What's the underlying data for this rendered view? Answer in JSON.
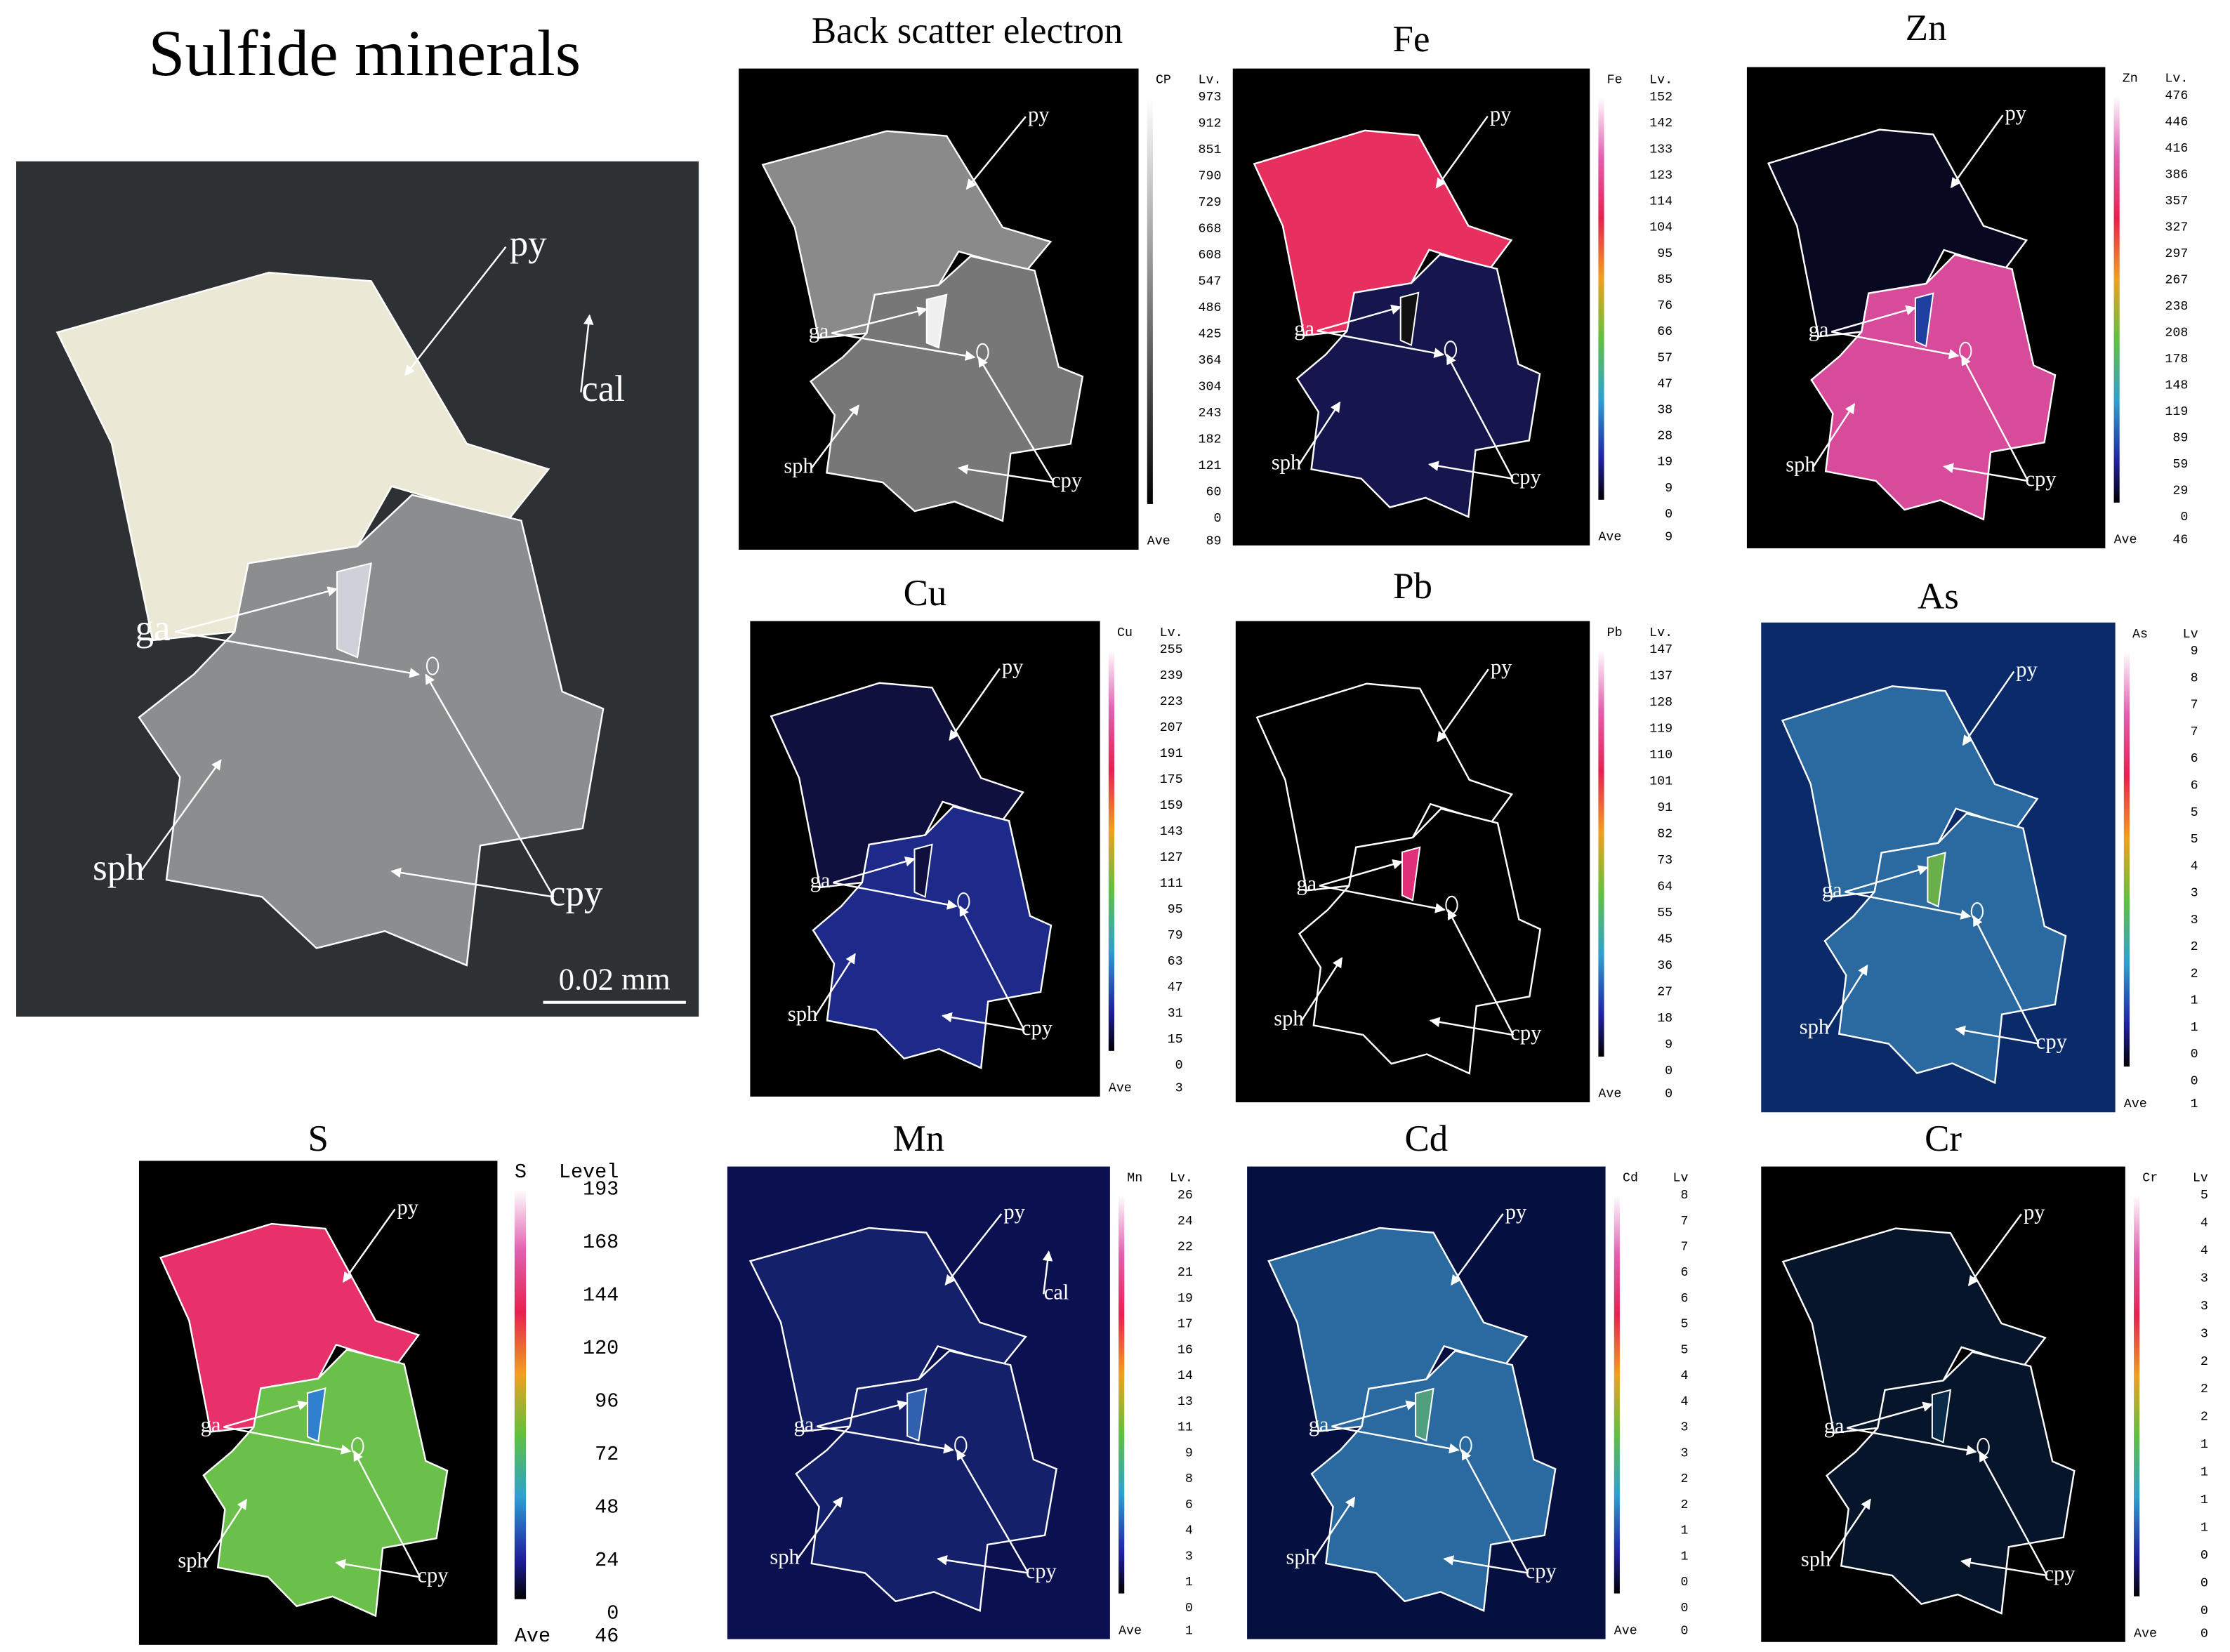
{
  "title": "Sulfide minerals",
  "micrograph": {
    "labels": [
      "py",
      "ga",
      "sph",
      "cpy",
      "cal"
    ],
    "scale_bar": "0.02 mm"
  },
  "maps": [
    {
      "title": "Back scatter electron",
      "element": "CP",
      "level_header": "Lv.",
      "levels": [
        973,
        912,
        851,
        790,
        729,
        668,
        608,
        547,
        486,
        425,
        364,
        304,
        243,
        182,
        121,
        60,
        0
      ],
      "ave_label": "Ave",
      "ave": 89,
      "labels": [
        "py",
        "ga",
        "sph",
        "cpy"
      ]
    },
    {
      "title": "Fe",
      "element": "Fe",
      "level_header": "Lv.",
      "levels": [
        152,
        142,
        133,
        123,
        114,
        104,
        95,
        85,
        76,
        66,
        57,
        47,
        38,
        28,
        19,
        9,
        0
      ],
      "ave_label": "Ave",
      "ave": 9,
      "labels": [
        "py",
        "ga",
        "sph",
        "cpy"
      ]
    },
    {
      "title": "Zn",
      "element": "Zn",
      "level_header": "Lv.",
      "levels": [
        476,
        446,
        416,
        386,
        357,
        327,
        297,
        267,
        238,
        208,
        178,
        148,
        119,
        89,
        59,
        29,
        0
      ],
      "ave_label": "Ave",
      "ave": 46,
      "labels": [
        "py",
        "ga",
        "sph",
        "cpy"
      ]
    },
    {
      "title": "Cu",
      "element": "Cu",
      "level_header": "Lv.",
      "levels": [
        255,
        239,
        223,
        207,
        191,
        175,
        159,
        143,
        127,
        111,
        95,
        79,
        63,
        47,
        31,
        15,
        0
      ],
      "ave_label": "Ave",
      "ave": 3,
      "labels": [
        "py",
        "ga",
        "sph",
        "cpy"
      ]
    },
    {
      "title": "Pb",
      "element": "Pb",
      "level_header": "Lv.",
      "levels": [
        147,
        137,
        128,
        119,
        110,
        101,
        91,
        82,
        73,
        64,
        55,
        45,
        36,
        27,
        18,
        9,
        0
      ],
      "ave_label": "Ave",
      "ave": 0,
      "labels": [
        "py",
        "ga",
        "sph",
        "cpy"
      ]
    },
    {
      "title": "As",
      "element": "As",
      "level_header": "Lv",
      "levels": [
        9,
        8,
        7,
        7,
        6,
        6,
        5,
        5,
        4,
        3,
        3,
        2,
        2,
        1,
        1,
        0,
        0
      ],
      "ave_label": "Ave",
      "ave": 1,
      "labels": [
        "py",
        "ga",
        "sph",
        "cpy"
      ]
    },
    {
      "title": "S",
      "element": "S",
      "level_header": "Level",
      "levels": [
        193,
        168,
        144,
        120,
        96,
        72,
        48,
        24,
        0
      ],
      "ave_label": "Ave",
      "ave": 46,
      "labels": [
        "py",
        "ga",
        "sph",
        "cpy"
      ]
    },
    {
      "title": "Mn",
      "element": "Mn",
      "level_header": "Lv.",
      "levels": [
        26,
        24,
        22,
        21,
        19,
        17,
        16,
        14,
        13,
        11,
        9,
        8,
        6,
        4,
        3,
        1,
        0
      ],
      "ave_label": "Ave",
      "ave": 1,
      "labels": [
        "py",
        "ga",
        "sph",
        "cpy",
        "cal"
      ]
    },
    {
      "title": "Cd",
      "element": "Cd",
      "level_header": "Lv",
      "levels": [
        8,
        7,
        7,
        6,
        6,
        5,
        5,
        4,
        4,
        3,
        3,
        2,
        2,
        1,
        1,
        0,
        0
      ],
      "ave_label": "Ave",
      "ave": 0,
      "labels": [
        "py",
        "ga",
        "sph",
        "cpy"
      ]
    },
    {
      "title": "Cr",
      "element": "Cr",
      "level_header": "Lv",
      "levels": [
        5,
        4,
        4,
        3,
        3,
        3,
        2,
        2,
        2,
        1,
        1,
        1,
        1,
        0,
        0,
        0
      ],
      "ave_label": "Ave",
      "ave": 0,
      "labels": [
        "py",
        "ga",
        "sph",
        "cpy"
      ]
    }
  ]
}
